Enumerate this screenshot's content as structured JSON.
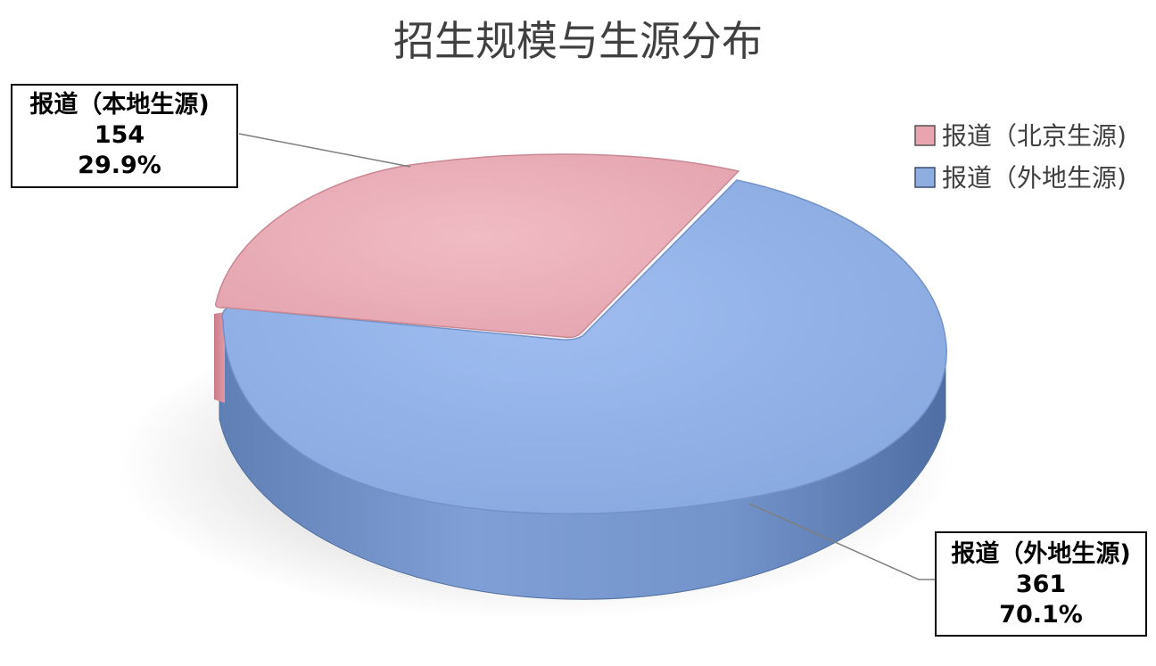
{
  "chart_data": {
    "type": "pie",
    "title": "招生规模与生源分布",
    "legend": {
      "placement": "top-right",
      "entries": [
        "报道（北京生源)",
        "报道（外地生源)"
      ]
    },
    "slices": [
      {
        "legend_label": "报道（北京生源)",
        "data_label": "报道（本地生源)",
        "value": 154,
        "percent": "29.9%",
        "color": "#e8a5b0"
      },
      {
        "legend_label": "报道（外地生源)",
        "data_label": "报道（外地生源)",
        "value": 361,
        "percent": "70.1%",
        "color": "#8eaee0"
      }
    ],
    "style": "3d"
  }
}
